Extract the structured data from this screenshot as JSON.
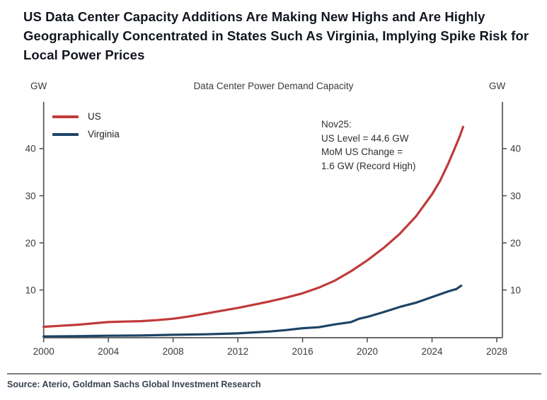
{
  "page": {
    "title": "US Data Center Capacity Additions Are Making New Highs and Are Highly Geographically Concentrated in States Such As Virginia, Implying Spike Risk for Local Power Prices",
    "source": "Source: Aterio, Goldman Sachs Global Investment Research"
  },
  "chart_data": {
    "type": "line",
    "title": "Data Center Power Demand Capacity",
    "y_unit_left": "GW",
    "y_unit_right": "GW",
    "ylabel": "GW",
    "xlabel": "",
    "grid": false,
    "legend_position": "top-left",
    "y_ticks": [
      10,
      20,
      30,
      40
    ],
    "x_ticks": [
      2000,
      2004,
      2008,
      2012,
      2016,
      2020,
      2024,
      2028
    ],
    "x_range": [
      2000,
      2028.35
    ],
    "y_range": [
      0,
      49.9
    ],
    "annotation": [
      "Nov25:",
      "US Level = 44.6 GW",
      "MoM US Change =",
      "1.6 GW (Record High)"
    ],
    "series": [
      {
        "name": "US",
        "color": "#c13a3a",
        "points": [
          [
            2000,
            2.2
          ],
          [
            2001,
            2.4
          ],
          [
            2002,
            2.6
          ],
          [
            2003,
            2.9
          ],
          [
            2004,
            3.2
          ],
          [
            2005,
            3.3
          ],
          [
            2006,
            3.4
          ],
          [
            2007,
            3.6
          ],
          [
            2008,
            3.9
          ],
          [
            2009,
            4.4
          ],
          [
            2010,
            5.0
          ],
          [
            2011,
            5.6
          ],
          [
            2012,
            6.2
          ],
          [
            2013,
            6.9
          ],
          [
            2014,
            7.6
          ],
          [
            2015,
            8.4
          ],
          [
            2016,
            9.3
          ],
          [
            2017,
            10.5
          ],
          [
            2018,
            12.0
          ],
          [
            2019,
            14.0
          ],
          [
            2020,
            16.3
          ],
          [
            2021,
            18.9
          ],
          [
            2022,
            21.9
          ],
          [
            2023,
            25.6
          ],
          [
            2024,
            30.3
          ],
          [
            2024.5,
            33.2
          ],
          [
            2025,
            36.8
          ],
          [
            2025.4,
            40.0
          ],
          [
            2025.7,
            42.5
          ],
          [
            2025.92,
            44.6
          ]
        ]
      },
      {
        "name": "Virginia",
        "color": "#1e4466",
        "points": [
          [
            2000,
            0.15
          ],
          [
            2002,
            0.2
          ],
          [
            2003,
            0.25
          ],
          [
            2004,
            0.3
          ],
          [
            2006,
            0.35
          ],
          [
            2008,
            0.5
          ],
          [
            2010,
            0.6
          ],
          [
            2012,
            0.8
          ],
          [
            2013,
            1.0
          ],
          [
            2014,
            1.2
          ],
          [
            2015,
            1.5
          ],
          [
            2016,
            1.9
          ],
          [
            2017,
            2.1
          ],
          [
            2018,
            2.7
          ],
          [
            2019,
            3.2
          ],
          [
            2019.5,
            3.9
          ],
          [
            2020,
            4.3
          ],
          [
            2021,
            5.3
          ],
          [
            2022,
            6.4
          ],
          [
            2023,
            7.3
          ],
          [
            2024,
            8.5
          ],
          [
            2025,
            9.7
          ],
          [
            2025.5,
            10.2
          ],
          [
            2025.8,
            10.9
          ]
        ]
      }
    ]
  },
  "colors": {
    "us_line": "#c13a3a",
    "virginia_line": "#1e4466",
    "axis": "#555555",
    "divider": "#797d84",
    "title_text": "#12161f",
    "source_text": "#39424f"
  }
}
